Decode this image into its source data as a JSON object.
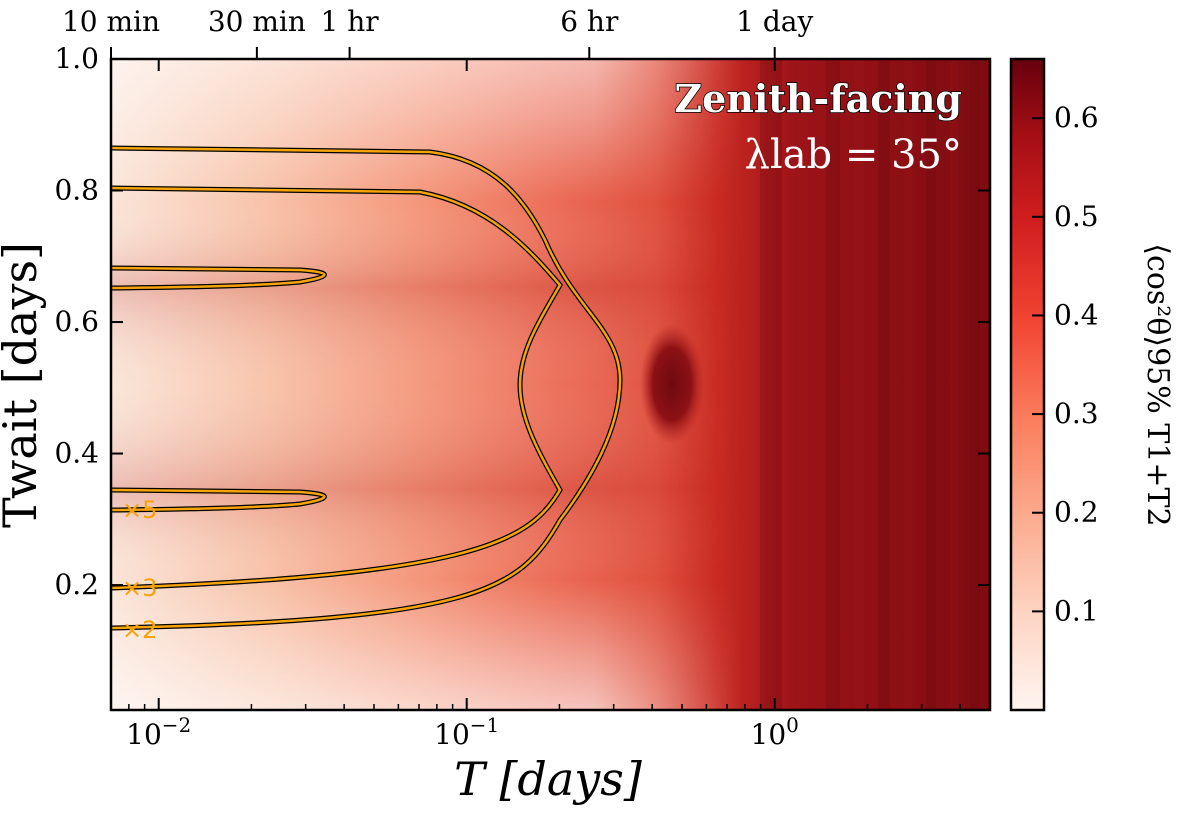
{
  "chart_data": {
    "type": "heatmap",
    "title": "Zenith-facing",
    "subtitle": "λlab = 35°",
    "xlabel": "T [days]",
    "ylabel": "Twait [days]",
    "x_scale": "log",
    "xlim": [
      0.007,
      5.0
    ],
    "ylim": [
      0.01,
      1.0
    ],
    "x_ticks": [
      {
        "value": 0.01,
        "label": "10−2"
      },
      {
        "value": 0.1,
        "label": "10−1"
      },
      {
        "value": 1,
        "label": "100"
      }
    ],
    "y_ticks": [
      {
        "value": 0.2,
        "label": "0.2"
      },
      {
        "value": 0.4,
        "label": "0.4"
      },
      {
        "value": 0.6,
        "label": "0.6"
      },
      {
        "value": 0.8,
        "label": "0.8"
      },
      {
        "value": 1.0,
        "label": "1.0"
      }
    ],
    "top_ticks": [
      {
        "value": 0.006944,
        "label": "10 min"
      },
      {
        "value": 0.020833,
        "label": "30 min"
      },
      {
        "value": 0.041667,
        "label": "1 hr"
      },
      {
        "value": 0.25,
        "label": "6 hr"
      },
      {
        "value": 1.0,
        "label": "1 day"
      }
    ],
    "colorbar": {
      "label": "⟨cos²θ⟩95% T1+T2",
      "colormap": "Reds",
      "range": [
        0.0,
        0.66
      ],
      "ticks": [
        {
          "value": 0.1,
          "label": "0.1"
        },
        {
          "value": 0.2,
          "label": "0.2"
        },
        {
          "value": 0.3,
          "label": "0.3"
        },
        {
          "value": 0.4,
          "label": "0.4"
        },
        {
          "value": 0.5,
          "label": "0.5"
        },
        {
          "value": 0.6,
          "label": "0.6"
        }
      ]
    },
    "contours": [
      {
        "label": "×2",
        "color": "#f5a30a",
        "y_level": 0.135
      },
      {
        "label": "×3",
        "color": "#f5a30a",
        "y_level": 0.2
      },
      {
        "label": "×5",
        "color": "#f5a30a",
        "y_level": 0.32
      }
    ]
  }
}
